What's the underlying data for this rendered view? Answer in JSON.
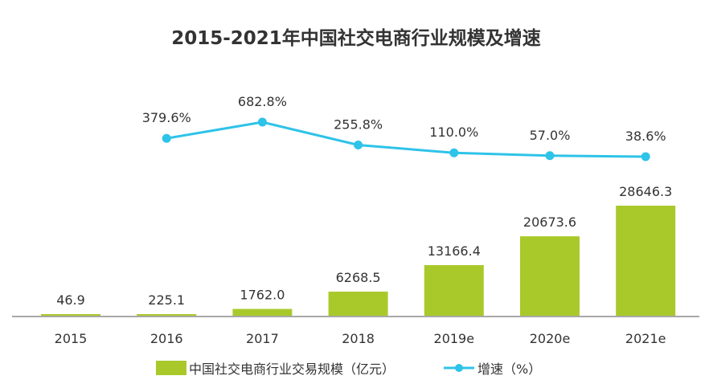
{
  "chart_data": {
    "type": "bar+line",
    "title": "2015-2021年中国社交电商行业规模及增速",
    "categories": [
      "2015",
      "2016",
      "2017",
      "2018",
      "2019e",
      "2020e",
      "2021e"
    ],
    "series": [
      {
        "name": "中国社交电商行业交易规模（亿元）",
        "type": "bar",
        "values": [
          46.9,
          225.1,
          1762.0,
          6268.5,
          13166.4,
          20673.6,
          28646.3
        ],
        "labels": [
          "46.9",
          "225.1",
          "1762.0",
          "6268.5",
          "13166.4",
          "20673.6",
          "28646.3"
        ],
        "color": "#a9c92b"
      },
      {
        "name": "增速（%）",
        "type": "line",
        "values": [
          null,
          379.6,
          682.8,
          255.8,
          110.0,
          57.0,
          38.6
        ],
        "labels": [
          "",
          "379.6%",
          "682.8%",
          "255.8%",
          "110.0%",
          "57.0%",
          "38.6%"
        ],
        "color": "#2ec3e8"
      }
    ],
    "grid": false,
    "legend": "bottom"
  }
}
